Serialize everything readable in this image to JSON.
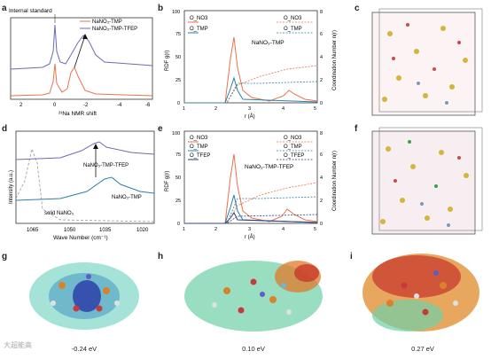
{
  "panel_labels": [
    "a",
    "b",
    "c",
    "d",
    "e",
    "f",
    "g",
    "h",
    "i"
  ],
  "panel_a": {
    "annotation": "Internal standard",
    "legend": [
      "NaNO₃-TMP",
      "NaNO₃-TMP-TFEP"
    ],
    "xlabel": "²³Na NMR shift",
    "xticks": [
      "2",
      "0",
      "-2",
      "-4",
      "-6"
    ],
    "colors": {
      "tmp": "#e8734a",
      "tfep": "#6b6bb8"
    }
  },
  "panel_b": {
    "ylabel_left": "RDF g(r)",
    "ylabel_right": "Coordination Number n(r)",
    "xlabel": "r (Å)",
    "inset_label": "NaNO₃-TMP",
    "legend_left": [
      "O_NO3",
      "O_TMP"
    ],
    "legend_right": [
      "O_NO3",
      "O_TMP"
    ],
    "yticks_left": [
      "0",
      "25",
      "50",
      "75",
      "100"
    ],
    "yticks_right": [
      "0",
      "2",
      "4",
      "6",
      "8"
    ],
    "xticks": [
      "1",
      "2",
      "3",
      "4",
      "5"
    ]
  },
  "panel_d": {
    "ylabel": "Intensity (a.u.)",
    "xlabel": "Wave Number (cm⁻¹)",
    "xticks": [
      "1065",
      "1050",
      "1035",
      "1020"
    ],
    "curve_labels": [
      "NaNO₃-TMP-TFEP",
      "NaNO₃-TMP",
      "solid NaNO₃"
    ]
  },
  "panel_e": {
    "ylabel_left": "RDF g(r)",
    "ylabel_right": "Coordination Number n(r)",
    "xlabel": "r (Å)",
    "inset_label": "NaNO₃-TMP-TFEP",
    "legend_left": [
      "O_NO3",
      "O_TMP",
      "O_TFEP"
    ],
    "legend_right": [
      "O_NO3",
      "O_TMP",
      "O_TFEP"
    ],
    "yticks_left": [
      "0",
      "25",
      "50",
      "75",
      "100"
    ],
    "yticks_right": [
      "0",
      "2",
      "4",
      "6",
      "8"
    ],
    "xticks": [
      "1",
      "2",
      "3",
      "4",
      "5"
    ]
  },
  "energies": [
    "-0.24 eV",
    "0.10 eV",
    "0.27 eV"
  ],
  "watermark": "大超能高",
  "colors": {
    "orange": "#e8734a",
    "blue": "#2e7fa8",
    "darkblue": "#2b3f7a",
    "purple": "#6b6bb8",
    "grey": "#999999"
  }
}
